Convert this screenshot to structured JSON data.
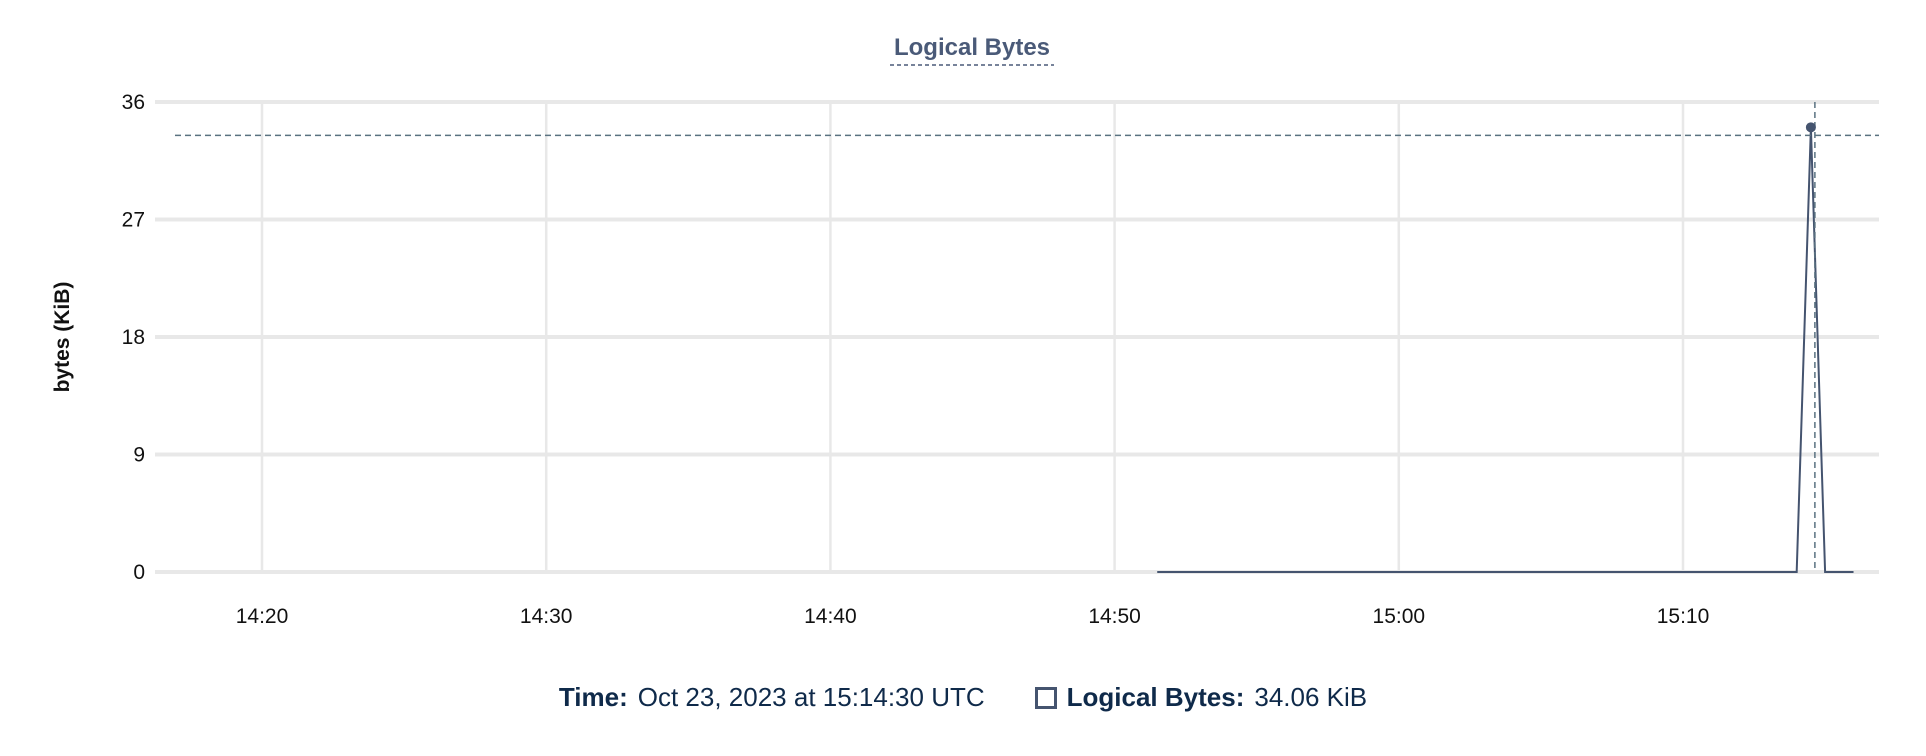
{
  "chart_data": {
    "type": "line",
    "title": "Logical Bytes",
    "xlabel": "",
    "ylabel": "bytes (KiB)",
    "ylim": [
      0,
      36
    ],
    "yticks": [
      "0",
      "9",
      "18",
      "27",
      "36"
    ],
    "xlim": [
      "14:16:20",
      "15:17:00"
    ],
    "xticks": [
      "14:20",
      "14:30",
      "14:40",
      "14:50",
      "15:00",
      "15:10"
    ],
    "grid": true,
    "series": [
      {
        "name": "Logical Bytes",
        "color": "#45546f",
        "x": [
          "14:51:30",
          "15:14:00",
          "15:14:30",
          "15:15:00",
          "15:16:00"
        ],
        "y": [
          0,
          0,
          34.06,
          0,
          0
        ]
      }
    ],
    "crosshair": {
      "x": "15:14:30",
      "y": 34.06
    }
  },
  "tooltip": {
    "time_label": "Time:",
    "time_value": "Oct 23, 2023 at 15:14:30 UTC",
    "series_label": "Logical Bytes:",
    "series_value": "34.06 KiB"
  }
}
